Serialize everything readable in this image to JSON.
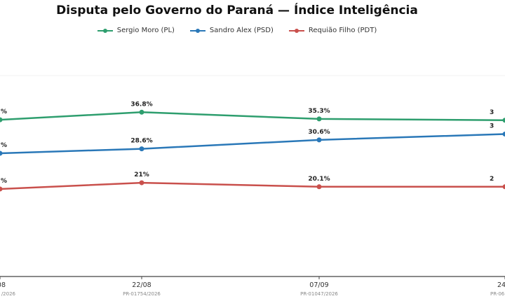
{
  "chart_data": {
    "type": "line",
    "title": "Disputa pelo Governo do Paraná — Índice Inteligência",
    "categories": [
      "08",
      "22/08",
      "07/09",
      "24"
    ],
    "sublabels": [
      "/2026",
      "PR-01754/2026",
      "PR-01047/2026",
      "PR-06"
    ],
    "series": [
      {
        "name": "Sergio Moro (PL)",
        "color": "#2e9e6e",
        "values": [
          35.1,
          36.8,
          35.3,
          35.0
        ],
        "labels": [
          "%",
          "36.8%",
          "35.3%",
          "3"
        ]
      },
      {
        "name": "Sandro Alex (PSD)",
        "color": "#2a78b8",
        "values": [
          27.6,
          28.6,
          30.6,
          31.9
        ],
        "labels": [
          "%",
          "28.6%",
          "30.6%",
          "3"
        ]
      },
      {
        "name": "Requião Filho (PDT)",
        "color": "#c9504c",
        "values": [
          19.6,
          21.0,
          20.1,
          20.1
        ],
        "labels": [
          "%",
          "21%",
          "20.1%",
          "2"
        ]
      }
    ],
    "legend": "top-center",
    "grid": false
  }
}
